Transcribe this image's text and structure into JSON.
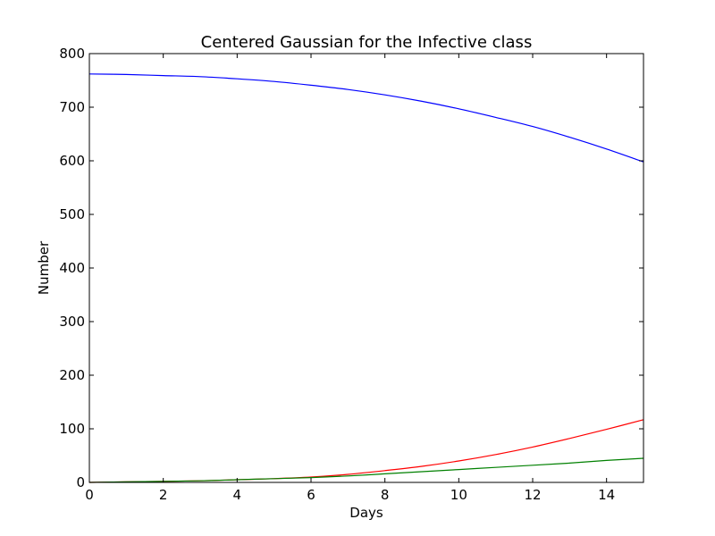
{
  "chart_data": {
    "type": "line",
    "title": "Centered Gaussian for the Infective class",
    "xlabel": "Days",
    "ylabel": "Number",
    "xlim": [
      0,
      15
    ],
    "ylim": [
      0,
      800
    ],
    "x_ticks": [
      0,
      2,
      4,
      6,
      8,
      10,
      12,
      14
    ],
    "y_ticks": [
      0,
      100,
      200,
      300,
      400,
      500,
      600,
      700,
      800
    ],
    "grid": false,
    "legend": "none",
    "x": [
      0,
      1,
      2,
      3,
      4,
      5,
      6,
      7,
      8,
      9,
      10,
      11,
      12,
      13,
      14,
      15
    ],
    "series": [
      {
        "color": "#0000ff",
        "values": [
          762,
          761,
          759,
          757,
          753,
          748,
          741,
          733,
          723,
          711,
          697,
          681,
          664,
          644,
          622,
          598
        ]
      },
      {
        "color": "#ff0000",
        "values": [
          0,
          1,
          2,
          3,
          5,
          7,
          10,
          15,
          22,
          30,
          40,
          52,
          66,
          82,
          99,
          117
        ]
      },
      {
        "color": "#008000",
        "values": [
          0,
          1,
          2,
          3,
          5,
          7,
          9,
          12,
          16,
          20,
          24,
          28,
          32,
          36,
          41,
          45
        ]
      }
    ]
  }
}
